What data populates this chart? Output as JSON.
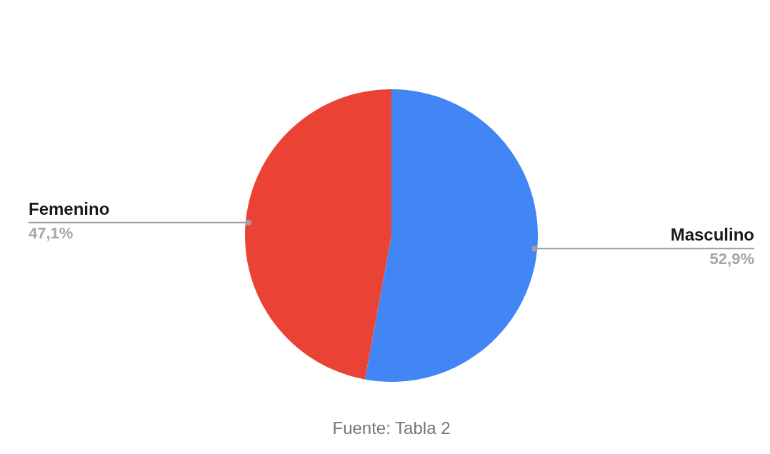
{
  "chart_data": {
    "type": "pie",
    "categories": [
      "Masculino",
      "Femenino"
    ],
    "values": [
      52.9,
      47.1
    ],
    "colors": [
      "#4285f4",
      "#ea4335"
    ],
    "value_labels": [
      "52,9%",
      "47,1%"
    ],
    "annotations": [
      "Fuente: Tabla 2"
    ]
  }
}
